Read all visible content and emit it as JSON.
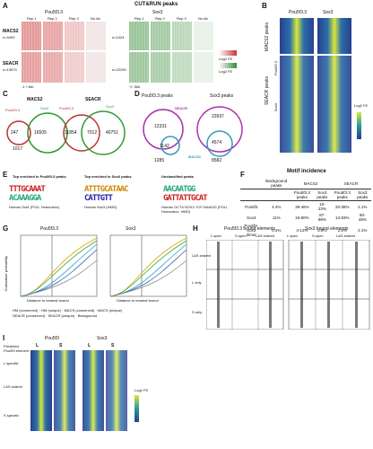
{
  "panelA": {
    "letter": "A",
    "title": "CUT&RUN peaks",
    "pou_label": "Pou5f3.3",
    "sox_label": "Sox3",
    "col_rep1": "Rep 1",
    "col_rep2": "Rep 2",
    "col_rep3": "Rep 3",
    "col_noab": "No Ab",
    "row_macs2": "MACS2",
    "row_macs2_n": "n=4409",
    "row_seacr": "SEACR",
    "row_seacr_n": "n=13970",
    "row_macs2_n_sox": "n=1024",
    "row_seacr_n_sox": "n=22290",
    "axis_left": "-1 +1kb",
    "axis_right": "+/- 5kb",
    "legend_red": "Log2 FE",
    "legend_green": "Log2 FE"
  },
  "panelB": {
    "letter": "B",
    "col1": "Pou5f3.3",
    "col2": "Sox3",
    "row_macs2": "MACS2 peaks",
    "row_seacr": "SEACR peaks",
    "sub1": "Pou5f3.3",
    "sub2": "Sox3",
    "scale": "Log2 FE"
  },
  "panelC": {
    "letter": "C",
    "left_title": "MACS2",
    "right_title": "SEACR",
    "pou": "Pou5f3.3",
    "sox": "Sox3",
    "l_only": "247",
    "l_overlap": "16505",
    "l_sox": "1017",
    "r_pou": "11854",
    "r_overlap": "7012",
    "r_sox": "40751"
  },
  "panelD": {
    "letter": "D",
    "pou_peaks": "Pou5f3.3 peaks",
    "sox_peaks": "Sox3 peaks",
    "seacr": "SEACR",
    "macs2": "MACS2",
    "v1": "12331",
    "v2": "22697",
    "v3": "1142",
    "v4": "4574",
    "v5": "1285",
    "v6": "8582"
  },
  "panelE": {
    "letter": "E",
    "h1": "Top enriched in Pou5f3.3 peaks",
    "h2": "Top enriched in Sox3 peaks",
    "h3": "Unclassified peaks",
    "m1": "TTTGCAAAT",
    "m2": "ACAAAGGA",
    "m3": "ATTTGCATAAC",
    "m4": "CATTGTT",
    "m5": "AACAATGG",
    "m6": "GATTATTGCAT",
    "c1": "Human Oct4 (POU, Homeobox)",
    "c2": "Human Sox3 (HMG)",
    "c3": "Human OCT4-SOX2-TCF-NANOG (POU, Homeobox, HMG)"
  },
  "panelF": {
    "letter": "F",
    "title": "Motif incidence",
    "hdr_bkg": "Background peaks",
    "hdr_macs2": "MACS2",
    "hdr_seacr": "SEACR",
    "sub_a": "Pou5f3.3 peaks",
    "sub_b": "Sox3 peaks",
    "sub_c": "Pou5f3.3 peaks",
    "sub_d": "Sox3 peaks",
    "rows": [
      {
        "name": "Pou5f3",
        "bkg": "4.4%",
        "m_pou": "39-46%",
        "m_sox": "10-23%",
        "s_pou": "20-38%",
        "s_sox": "2.1%"
      },
      {
        "name": "Sox3",
        "bkg": "11%",
        "m_pou": "16-80%",
        "m_sox": "87-98%",
        "s_pou": "13-83%",
        "s_sox": "80-49%"
      },
      {
        "name": "Pou5f3-Sox3 dimer",
        "bkg": "0.4%",
        "m_pou": "4-12%",
        "m_sox": "2.8%",
        "s_pou": "2.8%",
        "s_sox": "2.1%"
      }
    ]
  },
  "panelG": {
    "letter": "G",
    "t1": "Pou5f3.3",
    "t2": "Sox3",
    "ylabel": "Cumulative probability",
    "xlabel": "Distance to nearest bound",
    "legend": [
      "HM (conserved)",
      "HM (unique)",
      "MACS (conserved)",
      "MACS (unique)",
      "SEACR (conserved)",
      "SEACR (unique)",
      "Background"
    ]
  },
  "panelH": {
    "letter": "H",
    "t1": "Pou5f3.3 bound elements",
    "t2": "Sox3 bound elements",
    "c1": "L-spec",
    "c2": "S-spec",
    "c3": "L&S shared",
    "r1": "L&S shared",
    "r2": "L only",
    "r3": "S only"
  },
  "panelI": {
    "letter": "I",
    "t1": "Pou5f3",
    "t2": "Sox3",
    "colL": "L",
    "colS": "S",
    "ylab": "Predicted Pou5f3 element",
    "r1": "L specific",
    "r2": "L&S shared",
    "r3": "S specific",
    "scale": "Log2 FE"
  }
}
